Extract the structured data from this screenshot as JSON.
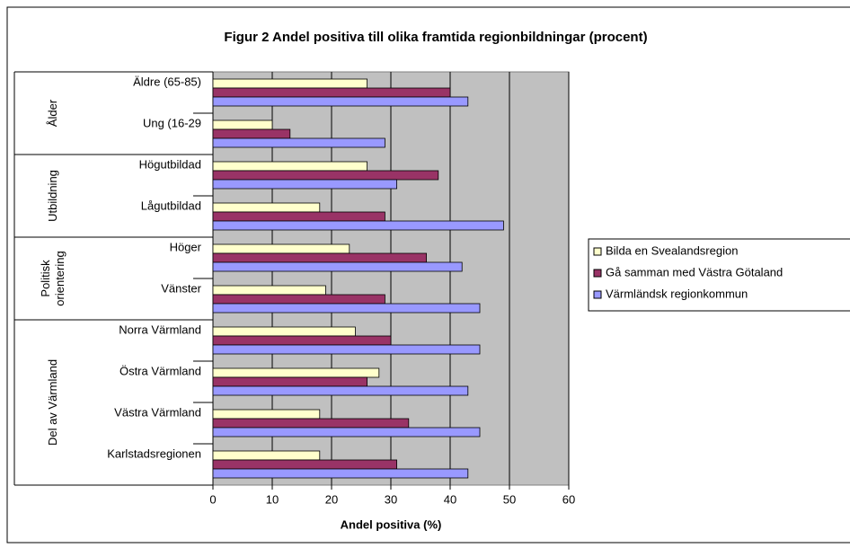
{
  "chart_data": {
    "type": "hbar",
    "title": "Figur 2  Andel positiva till olika framtida regionbildningar (procent)",
    "xlabel": "Andel positiva (%)",
    "groups": [
      {
        "label": [
          "Ålder"
        ],
        "categories": [
          "Äldre (65-85)",
          "Ung (16-29"
        ]
      },
      {
        "label": [
          "Utbildning"
        ],
        "categories": [
          "Högutbildad",
          "Lågutbildad"
        ]
      },
      {
        "label": [
          "Politisk",
          "orientering"
        ],
        "categories": [
          "Höger",
          "Vänster"
        ]
      },
      {
        "label": [
          "Del av Värmland"
        ],
        "categories": [
          "Norra Värmland",
          "Östra Värmland",
          "Västra Värmland",
          "Karlstadsregionen"
        ]
      }
    ],
    "series": [
      {
        "name": "Bilda en Svealandsregion",
        "color": "#ffffcc",
        "values": [
          26,
          10,
          26,
          18,
          23,
          19,
          24,
          28,
          18,
          18
        ]
      },
      {
        "name": "Gå samman med Västra Götaland",
        "color": "#993366",
        "values": [
          40,
          13,
          38,
          29,
          36,
          29,
          30,
          26,
          33,
          31
        ]
      },
      {
        "name": "Värmländsk regionkommun",
        "color": "#9999ff",
        "values": [
          43,
          29,
          31,
          49,
          42,
          45,
          45,
          43,
          45,
          43
        ]
      }
    ],
    "xlim": [
      0,
      60
    ],
    "xticks": [
      0,
      10,
      20,
      30,
      40,
      50,
      60
    ],
    "grid": true,
    "legend": "right"
  }
}
